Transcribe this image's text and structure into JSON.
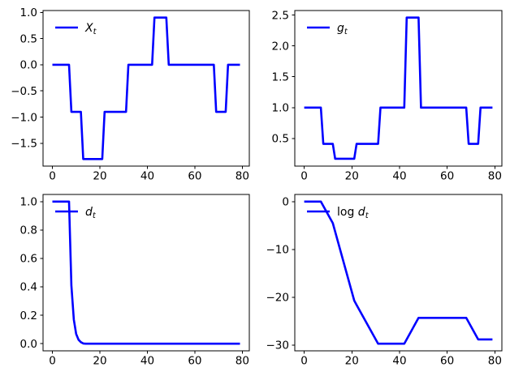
{
  "figure": {
    "background": "#ffffff",
    "line_color": "#0000ff",
    "line_width": 2.6,
    "axis_color": "#000000"
  },
  "chart_data": [
    {
      "type": "line",
      "id": "xt",
      "title": "",
      "xlabel": "",
      "ylabel": "",
      "legend": {
        "prefix": "",
        "main": "X",
        "sub": "t",
        "position": "upper left",
        "frame": false
      },
      "xlim": [
        -3.95,
        82.95
      ],
      "ylim": [
        -1.935,
        1.035
      ],
      "xticks": [
        0,
        20,
        40,
        60,
        80
      ],
      "xtick_labels": [
        "0",
        "20",
        "40",
        "60",
        "80"
      ],
      "yticks": [
        -1.5,
        -1.0,
        -0.5,
        0.0,
        0.5,
        1.0
      ],
      "ytick_labels": [
        "−1.5",
        "−1.0",
        "−0.5",
        "0.0",
        "0.5",
        "1.0"
      ],
      "grid": false,
      "points": [
        [
          0,
          0
        ],
        [
          7,
          0
        ],
        [
          8,
          -0.9
        ],
        [
          12,
          -0.9
        ],
        [
          13,
          -1.8
        ],
        [
          21,
          -1.8
        ],
        [
          22,
          -0.9
        ],
        [
          31,
          -0.9
        ],
        [
          32,
          0
        ],
        [
          42,
          0
        ],
        [
          43,
          0.9
        ],
        [
          48,
          0.9
        ],
        [
          49,
          0
        ],
        [
          68,
          0
        ],
        [
          69,
          -0.9
        ],
        [
          73,
          -0.9
        ],
        [
          74,
          0
        ],
        [
          79,
          0
        ]
      ]
    },
    {
      "type": "line",
      "id": "gt",
      "title": "",
      "xlabel": "",
      "ylabel": "",
      "legend": {
        "prefix": "",
        "main": "g",
        "sub": "t",
        "position": "upper left",
        "frame": false
      },
      "xlim": [
        -3.95,
        82.95
      ],
      "ylim": [
        0.05,
        2.575
      ],
      "xticks": [
        0,
        20,
        40,
        60,
        80
      ],
      "xtick_labels": [
        "0",
        "20",
        "40",
        "60",
        "80"
      ],
      "yticks": [
        0.5,
        1.0,
        1.5,
        2.0,
        2.5
      ],
      "ytick_labels": [
        "0.5",
        "1.0",
        "1.5",
        "2.0",
        "2.5"
      ],
      "grid": false,
      "points": [
        [
          0,
          1
        ],
        [
          7,
          1
        ],
        [
          8,
          0.41
        ],
        [
          12,
          0.41
        ],
        [
          13,
          0.17
        ],
        [
          21,
          0.17
        ],
        [
          22,
          0.41
        ],
        [
          31,
          0.41
        ],
        [
          32,
          1
        ],
        [
          42,
          1
        ],
        [
          43,
          2.46
        ],
        [
          48,
          2.46
        ],
        [
          49,
          1
        ],
        [
          68,
          1
        ],
        [
          69,
          0.41
        ],
        [
          73,
          0.41
        ],
        [
          74,
          1
        ],
        [
          79,
          1
        ]
      ]
    },
    {
      "type": "line",
      "id": "dt",
      "title": "",
      "xlabel": "",
      "ylabel": "",
      "legend": {
        "prefix": "",
        "main": "d",
        "sub": "t",
        "position": "upper left",
        "frame": false
      },
      "xlim": [
        -3.95,
        82.95
      ],
      "ylim": [
        -0.05,
        1.05
      ],
      "xticks": [
        0,
        20,
        40,
        60,
        80
      ],
      "xtick_labels": [
        "0",
        "20",
        "40",
        "60",
        "80"
      ],
      "yticks": [
        0.0,
        0.2,
        0.4,
        0.6,
        0.8,
        1.0
      ],
      "ytick_labels": [
        "0.0",
        "0.2",
        "0.4",
        "0.6",
        "0.8",
        "1.0"
      ],
      "grid": false,
      "points": [
        [
          0,
          1
        ],
        [
          7,
          1
        ],
        [
          8,
          0.41
        ],
        [
          9,
          0.17
        ],
        [
          10,
          0.068
        ],
        [
          11,
          0.028
        ],
        [
          12,
          0.011
        ],
        [
          13,
          0.002
        ],
        [
          14,
          0.0004
        ],
        [
          16,
          0
        ],
        [
          79,
          0
        ]
      ]
    },
    {
      "type": "line",
      "id": "log-dt",
      "title": "",
      "xlabel": "",
      "ylabel": "",
      "legend": {
        "prefix": "log ",
        "main": "d",
        "sub": "t",
        "position": "upper left",
        "frame": false
      },
      "xlim": [
        -3.95,
        82.95
      ],
      "ylim": [
        -31.19,
        1.49
      ],
      "xticks": [
        0,
        20,
        40,
        60,
        80
      ],
      "xtick_labels": [
        "0",
        "20",
        "40",
        "60",
        "80"
      ],
      "yticks": [
        -30,
        -20,
        -10,
        0
      ],
      "ytick_labels": [
        "−30",
        "−20",
        "−10",
        "0"
      ],
      "grid": false,
      "points": [
        [
          0,
          0
        ],
        [
          7,
          0
        ],
        [
          12,
          -4.5
        ],
        [
          21,
          -20.7
        ],
        [
          22,
          -21.6
        ],
        [
          31,
          -29.7
        ],
        [
          42,
          -29.7
        ],
        [
          48,
          -24.3
        ],
        [
          68,
          -24.3
        ],
        [
          73,
          -28.8
        ],
        [
          79,
          -28.8
        ]
      ]
    }
  ]
}
